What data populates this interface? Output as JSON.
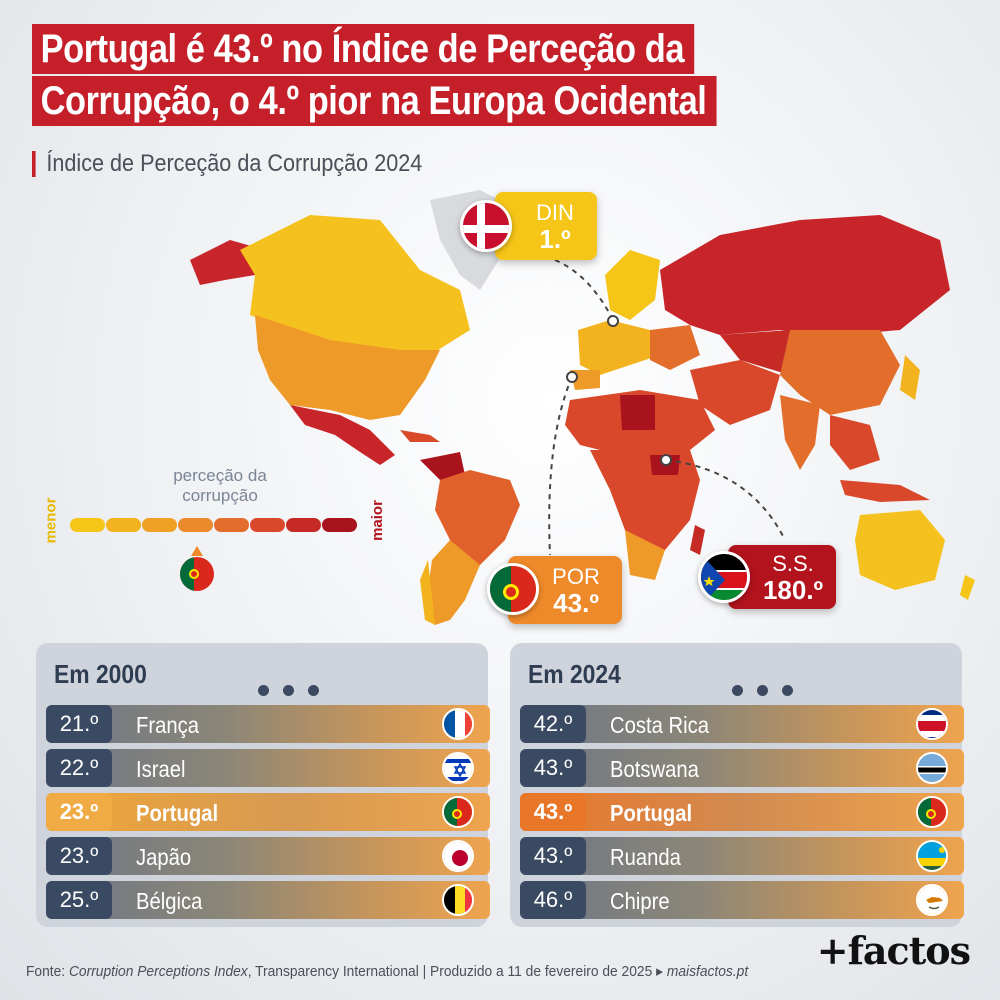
{
  "title": {
    "line1": "Portugal é 43.º no Índice de Perceção da",
    "line2": "Corrupção, o 4.º pior na Europa Ocidental"
  },
  "subtitle": "Índice de Perceção da Corrupção 2024",
  "callouts": {
    "den": {
      "code": "DIN",
      "rank": "1.º",
      "color": "#f5c518"
    },
    "por": {
      "code": "POR",
      "rank": "43.º",
      "color": "#ee8a2a"
    },
    "ss": {
      "code": "S.S.",
      "rank": "180.º",
      "color": "#b3131d"
    }
  },
  "legend": {
    "label_line1": "perceção da",
    "label_line2": "corrupção",
    "low": "menor",
    "high": "maior",
    "colors": [
      "#f5c518",
      "#f2b31e",
      "#eea125",
      "#ea8a2a",
      "#e36d2b",
      "#d9482a",
      "#c52a25",
      "#a8131d"
    ]
  },
  "panel_2000": {
    "title": "Em 2000",
    "rows": [
      {
        "rank": "21.º",
        "name": "França",
        "flag": "france"
      },
      {
        "rank": "22.º",
        "name": "Israel",
        "flag": "israel"
      },
      {
        "rank": "23.º",
        "name": "Portugal",
        "flag": "portugal",
        "highlight": true
      },
      {
        "rank": "23.º",
        "name": "Japão",
        "flag": "japan"
      },
      {
        "rank": "25.º",
        "name": "Bélgica",
        "flag": "belgium"
      }
    ]
  },
  "panel_2024": {
    "title": "Em 2024",
    "rows": [
      {
        "rank": "42.º",
        "name": "Costa Rica",
        "flag": "costa-rica"
      },
      {
        "rank": "43.º",
        "name": "Botswana",
        "flag": "botswana"
      },
      {
        "rank": "43.º",
        "name": "Portugal",
        "flag": "portugal",
        "highlight": true
      },
      {
        "rank": "43.º",
        "name": "Ruanda",
        "flag": "rwanda"
      },
      {
        "rank": "46.º",
        "name": "Chipre",
        "flag": "cyprus"
      }
    ]
  },
  "footer": {
    "prefix": "Fonte: ",
    "source_italic": "Corruption Perceptions Index",
    "source_rest": ", Transparency International | Produzido a 11 de fevereiro de 2025 ▸ ",
    "site": "maisfactos.pt"
  },
  "brand": "+factos"
}
